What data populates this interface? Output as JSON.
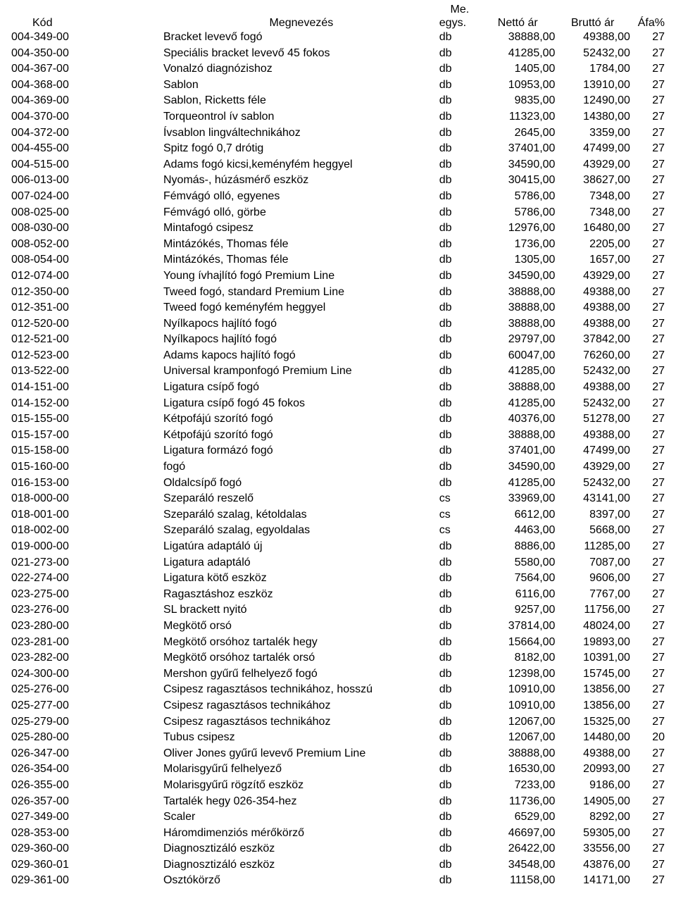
{
  "header": {
    "code": "Kód",
    "name": "Megnevezés",
    "unit_line1": "Me.",
    "unit_line2": "egys.",
    "net": "Nettó ár",
    "gross": "Bruttó ár",
    "vat": "Áfa%"
  },
  "rows": [
    {
      "code": "004-349-00",
      "name": "Bracket levevő fogó",
      "unit": "db",
      "net": "38888,00",
      "gross": "49388,00",
      "vat": "27"
    },
    {
      "code": "004-350-00",
      "name": "Speciális bracket levevő 45 fokos",
      "unit": "db",
      "net": "41285,00",
      "gross": "52432,00",
      "vat": "27"
    },
    {
      "code": "004-367-00",
      "name": "Vonalzó diagnózishoz",
      "unit": "db",
      "net": "1405,00",
      "gross": "1784,00",
      "vat": "27"
    },
    {
      "code": "004-368-00",
      "name": "Sablon",
      "unit": "db",
      "net": "10953,00",
      "gross": "13910,00",
      "vat": "27"
    },
    {
      "code": "004-369-00",
      "name": "Sablon, Ricketts féle",
      "unit": "db",
      "net": "9835,00",
      "gross": "12490,00",
      "vat": "27"
    },
    {
      "code": "004-370-00",
      "name": "Torqueontrol ív sablon",
      "unit": "db",
      "net": "11323,00",
      "gross": "14380,00",
      "vat": "27"
    },
    {
      "code": "004-372-00",
      "name": "Ívsablon lingváltechnikához",
      "unit": "db",
      "net": "2645,00",
      "gross": "3359,00",
      "vat": "27"
    },
    {
      "code": "004-455-00",
      "name": "Spitz fogó 0,7 drótig",
      "unit": "db",
      "net": "37401,00",
      "gross": "47499,00",
      "vat": "27"
    },
    {
      "code": "004-515-00",
      "name": "Adams fogó kicsi,keményfém heggyel",
      "unit": "db",
      "net": "34590,00",
      "gross": "43929,00",
      "vat": "27"
    },
    {
      "code": "006-013-00",
      "name": "Nyomás-, húzásmérő eszköz",
      "unit": "db",
      "net": "30415,00",
      "gross": "38627,00",
      "vat": "27"
    },
    {
      "code": "007-024-00",
      "name": "Fémvágó olló, egyenes",
      "unit": "db",
      "net": "5786,00",
      "gross": "7348,00",
      "vat": "27"
    },
    {
      "code": "008-025-00",
      "name": "Fémvágó olló, görbe",
      "unit": "db",
      "net": "5786,00",
      "gross": "7348,00",
      "vat": "27"
    },
    {
      "code": "008-030-00",
      "name": "Mintafogó csipesz",
      "unit": "db",
      "net": "12976,00",
      "gross": "16480,00",
      "vat": "27"
    },
    {
      "code": "008-052-00",
      "name": "Mintázókés, Thomas féle",
      "unit": "db",
      "net": "1736,00",
      "gross": "2205,00",
      "vat": "27"
    },
    {
      "code": "008-054-00",
      "name": "Mintázókés, Thomas féle",
      "unit": "db",
      "net": "1305,00",
      "gross": "1657,00",
      "vat": "27"
    },
    {
      "code": "012-074-00",
      "name": "Young ívhajlító fogó Premium Line",
      "unit": "db",
      "net": "34590,00",
      "gross": "43929,00",
      "vat": "27"
    },
    {
      "code": "012-350-00",
      "name": "Tweed fogó, standard Premium Line",
      "unit": "db",
      "net": "38888,00",
      "gross": "49388,00",
      "vat": "27"
    },
    {
      "code": "012-351-00",
      "name": "Tweed fogó keményfém heggyel",
      "unit": "db",
      "net": "38888,00",
      "gross": "49388,00",
      "vat": "27"
    },
    {
      "code": "012-520-00",
      "name": "Nyílkapocs hajlító fogó",
      "unit": "db",
      "net": "38888,00",
      "gross": "49388,00",
      "vat": "27"
    },
    {
      "code": "012-521-00",
      "name": "Nyílkapocs hajlító fogó",
      "unit": "db",
      "net": "29797,00",
      "gross": "37842,00",
      "vat": "27"
    },
    {
      "code": "012-523-00",
      "name": "Adams kapocs hajlító fogó",
      "unit": "db",
      "net": "60047,00",
      "gross": "76260,00",
      "vat": "27"
    },
    {
      "code": "013-522-00",
      "name": "Universal kramponfogó Premium Line",
      "unit": "db",
      "net": "41285,00",
      "gross": "52432,00",
      "vat": "27"
    },
    {
      "code": "014-151-00",
      "name": "Ligatura csípő fogó",
      "unit": "db",
      "net": "38888,00",
      "gross": "49388,00",
      "vat": "27"
    },
    {
      "code": "014-152-00",
      "name": "Ligatura csípő fogó 45 fokos",
      "unit": "db",
      "net": "41285,00",
      "gross": "52432,00",
      "vat": "27"
    },
    {
      "code": "015-155-00",
      "name": "Kétpofájú szorító fogó",
      "unit": "db",
      "net": "40376,00",
      "gross": "51278,00",
      "vat": "27"
    },
    {
      "code": "015-157-00",
      "name": "Kétpofájú szorító fogó",
      "unit": "db",
      "net": "38888,00",
      "gross": "49388,00",
      "vat": "27"
    },
    {
      "code": "015-158-00",
      "name": "Ligatura formázó fogó",
      "unit": "db",
      "net": "37401,00",
      "gross": "47499,00",
      "vat": "27"
    },
    {
      "code": "015-160-00",
      "name": "fogó",
      "unit": "db",
      "net": "34590,00",
      "gross": "43929,00",
      "vat": "27"
    },
    {
      "code": "016-153-00",
      "name": "Oldalcsípő fogó",
      "unit": "db",
      "net": "41285,00",
      "gross": "52432,00",
      "vat": "27"
    },
    {
      "code": "018-000-00",
      "name": "Szeparáló reszelő",
      "unit": "cs",
      "net": "33969,00",
      "gross": "43141,00",
      "vat": "27"
    },
    {
      "code": "018-001-00",
      "name": "Szeparáló szalag, kétoldalas",
      "unit": "cs",
      "net": "6612,00",
      "gross": "8397,00",
      "vat": "27"
    },
    {
      "code": "018-002-00",
      "name": "Szeparáló szalag, egyoldalas",
      "unit": "cs",
      "net": "4463,00",
      "gross": "5668,00",
      "vat": "27"
    },
    {
      "code": "019-000-00",
      "name": "Ligatúra adaptáló új",
      "unit": "db",
      "net": "8886,00",
      "gross": "11285,00",
      "vat": "27"
    },
    {
      "code": "021-273-00",
      "name": "Ligatura adaptáló",
      "unit": "db",
      "net": "5580,00",
      "gross": "7087,00",
      "vat": "27"
    },
    {
      "code": "022-274-00",
      "name": "Ligatura kötő eszköz",
      "unit": "db",
      "net": "7564,00",
      "gross": "9606,00",
      "vat": "27"
    },
    {
      "code": "023-275-00",
      "name": "Ragasztáshoz eszköz",
      "unit": "db",
      "net": "6116,00",
      "gross": "7767,00",
      "vat": "27"
    },
    {
      "code": "023-276-00",
      "name": "SL brackett nyitó",
      "unit": "db",
      "net": "9257,00",
      "gross": "11756,00",
      "vat": "27"
    },
    {
      "code": "023-280-00",
      "name": "Megkötő orsó",
      "unit": "db",
      "net": "37814,00",
      "gross": "48024,00",
      "vat": "27"
    },
    {
      "code": "023-281-00",
      "name": "Megkötő orsóhoz tartalék hegy",
      "unit": "db",
      "net": "15664,00",
      "gross": "19893,00",
      "vat": "27"
    },
    {
      "code": "023-282-00",
      "name": "Megkötő orsóhoz tartalék orsó",
      "unit": "db",
      "net": "8182,00",
      "gross": "10391,00",
      "vat": "27"
    },
    {
      "code": "024-300-00",
      "name": "Mershon gyűrű felhelyező fogó",
      "unit": "db",
      "net": "12398,00",
      "gross": "15745,00",
      "vat": "27"
    },
    {
      "code": "025-276-00",
      "name": "Csipesz ragasztásos technikához, hosszú",
      "unit": "db",
      "net": "10910,00",
      "gross": "13856,00",
      "vat": "27"
    },
    {
      "code": "025-277-00",
      "name": "Csipesz ragasztásos technikához",
      "unit": "db",
      "net": "10910,00",
      "gross": "13856,00",
      "vat": "27"
    },
    {
      "code": "025-279-00",
      "name": "Csipesz ragasztásos technikához",
      "unit": "db",
      "net": "12067,00",
      "gross": "15325,00",
      "vat": "27"
    },
    {
      "code": "025-280-00",
      "name": "Tubus csipesz",
      "unit": "db",
      "net": "12067,00",
      "gross": "14480,00",
      "vat": "20"
    },
    {
      "code": "026-347-00",
      "name": "Oliver Jones gyűrű levevő Premium Line",
      "unit": "db",
      "net": "38888,00",
      "gross": "49388,00",
      "vat": "27"
    },
    {
      "code": "026-354-00",
      "name": "Molarisgyűrű felhelyező",
      "unit": "db",
      "net": "16530,00",
      "gross": "20993,00",
      "vat": "27"
    },
    {
      "code": "026-355-00",
      "name": "Molarisgyűrű rögzítő eszköz",
      "unit": "db",
      "net": "7233,00",
      "gross": "9186,00",
      "vat": "27"
    },
    {
      "code": "026-357-00",
      "name": "Tartalék hegy 026-354-hez",
      "unit": "db",
      "net": "11736,00",
      "gross": "14905,00",
      "vat": "27"
    },
    {
      "code": "027-349-00",
      "name": "Scaler",
      "unit": "db",
      "net": "6529,00",
      "gross": "8292,00",
      "vat": "27"
    },
    {
      "code": "028-353-00",
      "name": "Háromdimenziós mérőkörző",
      "unit": "db",
      "net": "46697,00",
      "gross": "59305,00",
      "vat": "27"
    },
    {
      "code": "029-360-00",
      "name": "Diagnosztizáló eszköz",
      "unit": "db",
      "net": "26422,00",
      "gross": "33556,00",
      "vat": "27"
    },
    {
      "code": "029-360-01",
      "name": "Diagnosztizáló eszköz",
      "unit": "db",
      "net": "34548,00",
      "gross": "43876,00",
      "vat": "27"
    },
    {
      "code": "029-361-00",
      "name": "Osztókörző",
      "unit": "db",
      "net": "11158,00",
      "gross": "14171,00",
      "vat": "27"
    }
  ]
}
